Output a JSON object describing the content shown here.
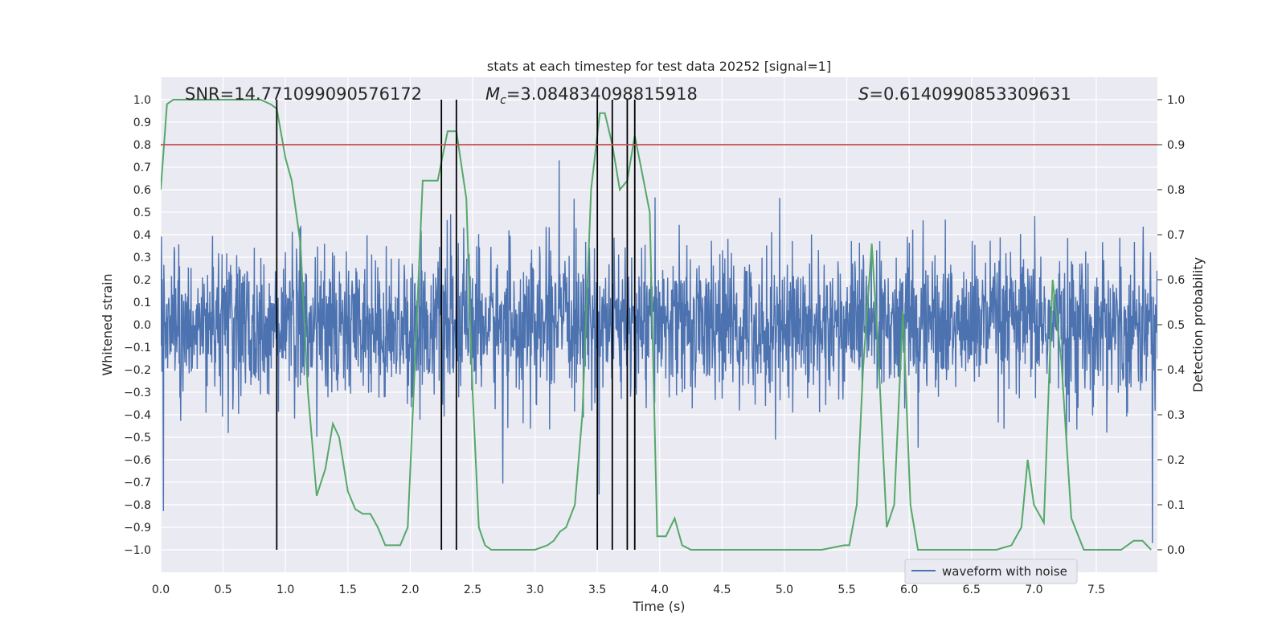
{
  "chart_data": {
    "type": "line",
    "title": "stats at each timestep for test data 20252 [signal=1]",
    "xlabel": "Time (s)",
    "ylabel": "Whitened strain",
    "ylabel_right": "Detection probability",
    "xlim": [
      0.0,
      7.99
    ],
    "ylim": [
      -1.1,
      1.1
    ],
    "ylim_right": [
      -0.05,
      1.05
    ],
    "x_ticks": [
      "0.0",
      "0.5",
      "1.0",
      "1.5",
      "2.0",
      "2.5",
      "3.0",
      "3.5",
      "4.0",
      "4.5",
      "5.0",
      "5.5",
      "6.0",
      "6.5",
      "7.0",
      "7.5"
    ],
    "y_ticks": [
      "1.0",
      "0.9",
      "0.8",
      "0.7",
      "0.6",
      "0.5",
      "0.4",
      "0.3",
      "0.2",
      "0.1",
      "0.0",
      "-0.1",
      "-0.2",
      "-0.3",
      "-0.4",
      "-0.5",
      "-0.6",
      "-0.7",
      "-0.8",
      "-0.9",
      "-1.0"
    ],
    "y_ticks_right": [
      "1.0",
      "0.9",
      "0.8",
      "0.7",
      "0.6",
      "0.5",
      "0.4",
      "0.3",
      "0.2",
      "0.1",
      "0.0"
    ],
    "grid": true,
    "legend": {
      "position": "lower-right",
      "entries": [
        "waveform with noise"
      ]
    },
    "annotations": {
      "snr": "SNR=14.771099090576172",
      "mc_prefix": "M",
      "mc_sub": "c",
      "mc_value": "=3.084834098815918",
      "s_prefix": "S",
      "s_value": "=0.6140990853309631"
    },
    "threshold": {
      "value": 0.9,
      "axis": "right",
      "color": "#c44e52"
    },
    "detection_markers_x": [
      0.93,
      2.25,
      2.37,
      3.5,
      3.62,
      3.74,
      3.8
    ],
    "series": [
      {
        "name": "waveform with noise",
        "axis": "left",
        "color": "#4c72b0",
        "style": "noise",
        "x_range": [
          0.0,
          7.99
        ],
        "typical_amplitude": 0.28,
        "max_amplitude": 0.97
      },
      {
        "axis": "right",
        "color": "#55a868",
        "x": [
          0.0,
          0.05,
          0.1,
          0.2,
          0.4,
          0.6,
          0.8,
          0.88,
          0.93,
          1.0,
          1.05,
          1.12,
          1.18,
          1.25,
          1.32,
          1.38,
          1.43,
          1.5,
          1.56,
          1.62,
          1.68,
          1.74,
          1.8,
          1.86,
          1.92,
          1.98,
          2.02,
          2.1,
          2.16,
          2.22,
          2.3,
          2.37,
          2.45,
          2.5,
          2.55,
          2.6,
          2.65,
          2.75,
          3.0,
          3.1,
          3.15,
          3.2,
          3.25,
          3.32,
          3.38,
          3.45,
          3.52,
          3.56,
          3.62,
          3.68,
          3.74,
          3.8,
          3.85,
          3.92,
          3.98,
          4.05,
          4.12,
          4.18,
          4.25,
          4.35,
          4.6,
          5.0,
          5.3,
          5.48,
          5.52,
          5.58,
          5.63,
          5.7,
          5.75,
          5.82,
          5.88,
          5.95,
          6.01,
          6.07,
          6.2,
          6.5,
          6.7,
          6.82,
          6.9,
          6.95,
          7.0,
          7.08,
          7.15,
          7.22,
          7.3,
          7.4,
          7.55,
          7.7,
          7.8,
          7.87,
          7.94
        ],
        "y": [
          0.8,
          0.99,
          1.0,
          1.0,
          1.0,
          1.0,
          1.0,
          0.99,
          0.98,
          0.87,
          0.82,
          0.68,
          0.35,
          0.12,
          0.18,
          0.28,
          0.25,
          0.13,
          0.09,
          0.08,
          0.08,
          0.05,
          0.01,
          0.01,
          0.01,
          0.05,
          0.3,
          0.82,
          0.82,
          0.82,
          0.93,
          0.93,
          0.78,
          0.35,
          0.05,
          0.01,
          0.0,
          0.0,
          0.0,
          0.01,
          0.02,
          0.04,
          0.05,
          0.1,
          0.3,
          0.8,
          0.97,
          0.97,
          0.9,
          0.8,
          0.82,
          0.92,
          0.85,
          0.75,
          0.03,
          0.03,
          0.07,
          0.01,
          0.0,
          0.0,
          0.0,
          0.0,
          0.0,
          0.01,
          0.01,
          0.1,
          0.4,
          0.68,
          0.45,
          0.05,
          0.1,
          0.53,
          0.1,
          0.0,
          0.0,
          0.0,
          0.0,
          0.01,
          0.05,
          0.2,
          0.1,
          0.06,
          0.6,
          0.42,
          0.07,
          0.0,
          0.0,
          0.0,
          0.02,
          0.02,
          0.0
        ]
      }
    ]
  }
}
